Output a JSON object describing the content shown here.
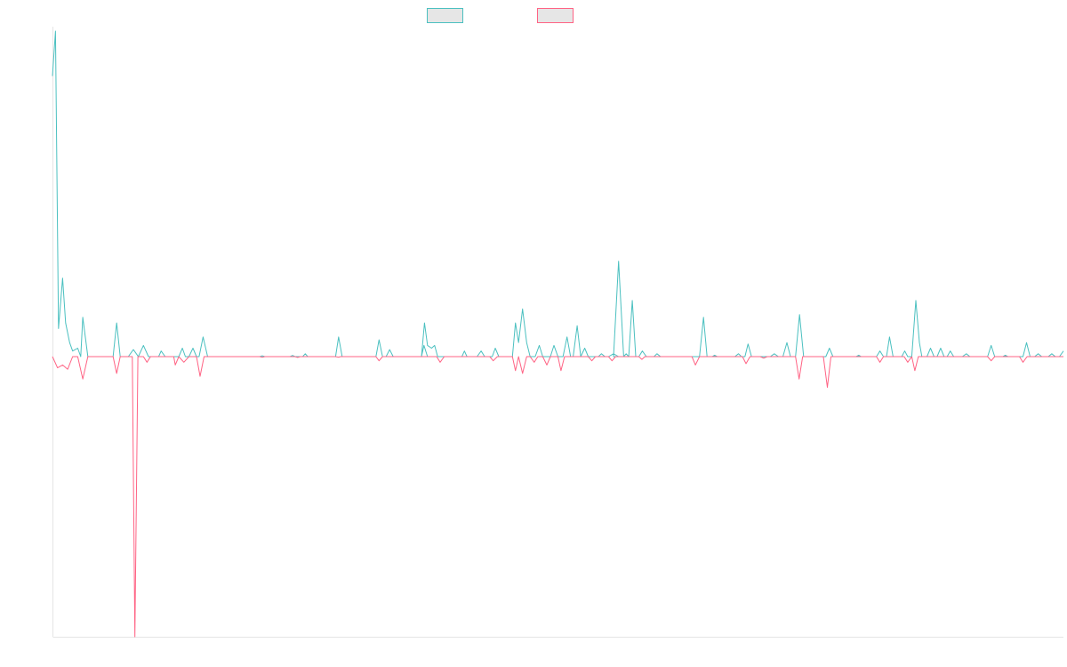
{
  "chart_data": {
    "type": "line",
    "title": "",
    "xlabel": "",
    "ylabel": "",
    "legend_position": "top",
    "grid": false,
    "x_range": [
      0,
      200
    ],
    "ylim": [
      -1.0,
      1.16
    ],
    "series": [
      {
        "name": "",
        "color": "#4bc0c0",
        "fill": "#e6e6e6",
        "points": [
          [
            0,
            1.0
          ],
          [
            0.6,
            1.16
          ],
          [
            1.2,
            0.1
          ],
          [
            2,
            0.28
          ],
          [
            2.6,
            0.12
          ],
          [
            3.4,
            0.05
          ],
          [
            4,
            0.02
          ],
          [
            5,
            0.03
          ],
          [
            5.6,
            0.0
          ],
          [
            6,
            0.14
          ],
          [
            7,
            0.0
          ],
          [
            12,
            0.0
          ],
          [
            12.7,
            0.12
          ],
          [
            13.4,
            0.0
          ],
          [
            15,
            0.0
          ],
          [
            16,
            0.025
          ],
          [
            17,
            0.0
          ],
          [
            18,
            0.04
          ],
          [
            19,
            0.0
          ],
          [
            21,
            0.0
          ],
          [
            21.5,
            0.02
          ],
          [
            22.3,
            0.0
          ],
          [
            25,
            0.0
          ],
          [
            25.7,
            0.03
          ],
          [
            26.3,
            0.0
          ],
          [
            27,
            0.0
          ],
          [
            27.8,
            0.03
          ],
          [
            28.5,
            0.0
          ],
          [
            29,
            0.0
          ],
          [
            29.8,
            0.07
          ],
          [
            30.7,
            0.0
          ],
          [
            41,
            0.0
          ],
          [
            41.5,
            0.003
          ],
          [
            42,
            0.0
          ],
          [
            47,
            0.0
          ],
          [
            47.5,
            0.004
          ],
          [
            48,
            0.0
          ],
          [
            49.5,
            0.0
          ],
          [
            50,
            0.01
          ],
          [
            50.5,
            0.0
          ],
          [
            56,
            0.0
          ],
          [
            56.6,
            0.07
          ],
          [
            57.3,
            0.0
          ],
          [
            64,
            0.0
          ],
          [
            64.6,
            0.06
          ],
          [
            65.3,
            0.0
          ],
          [
            66,
            0.0
          ],
          [
            66.7,
            0.025
          ],
          [
            67.4,
            0.0
          ],
          [
            73,
            0.0
          ],
          [
            73.5,
            0.04
          ],
          [
            74.2,
            0.0
          ],
          [
            75,
            0.0
          ],
          [
            73,
            0.0
          ],
          [
            73.6,
            0.12
          ],
          [
            74.2,
            0.04
          ],
          [
            75,
            0.03
          ],
          [
            75.6,
            0.04
          ],
          [
            76.2,
            0.0
          ],
          [
            81,
            0.0
          ],
          [
            81.5,
            0.02
          ],
          [
            82,
            0.0
          ],
          [
            84,
            0.0
          ],
          [
            84.8,
            0.02
          ],
          [
            85.5,
            0.0
          ],
          [
            87,
            0.0
          ],
          [
            87.6,
            0.03
          ],
          [
            88.3,
            0.0
          ],
          [
            91,
            0.0
          ],
          [
            91.6,
            0.12
          ],
          [
            92.2,
            0.05
          ],
          [
            93,
            0.17
          ],
          [
            93.8,
            0.05
          ],
          [
            94.5,
            0.0
          ],
          [
            95.5,
            0.0
          ],
          [
            96.3,
            0.04
          ],
          [
            97,
            0.0
          ],
          [
            98.5,
            0.0
          ],
          [
            99.2,
            0.04
          ],
          [
            100,
            0.0
          ],
          [
            101,
            0.0
          ],
          [
            101.8,
            0.07
          ],
          [
            102.5,
            0.0
          ],
          [
            103,
            0.0
          ],
          [
            103.8,
            0.11
          ],
          [
            104.5,
            0.0
          ],
          [
            105.3,
            0.03
          ],
          [
            106,
            0.0
          ],
          [
            108,
            0.0
          ],
          [
            108.6,
            0.01
          ],
          [
            109.3,
            0.0
          ],
          [
            110,
            0.0
          ],
          [
            111,
            0.01
          ],
          [
            112,
            0.0
          ],
          [
            113,
            0.0
          ],
          [
            113.5,
            0.01
          ],
          [
            114,
            0.0
          ],
          [
            111,
            0.0
          ],
          [
            112,
            0.34
          ],
          [
            113,
            0.0
          ],
          [
            114,
            0.0
          ],
          [
            114.7,
            0.2
          ],
          [
            115.4,
            0.0
          ],
          [
            116,
            0.0
          ],
          [
            116.7,
            0.02
          ],
          [
            117.5,
            0.0
          ],
          [
            119,
            0.0
          ],
          [
            119.6,
            0.01
          ],
          [
            120.3,
            0.0
          ],
          [
            128,
            0.0
          ],
          [
            128.8,
            0.14
          ],
          [
            129.5,
            0.0
          ],
          [
            130.5,
            0.0
          ],
          [
            131,
            0.005
          ],
          [
            131.5,
            0.0
          ],
          [
            135,
            0.0
          ],
          [
            135.7,
            0.01
          ],
          [
            136.3,
            0.0
          ],
          [
            137,
            0.0
          ],
          [
            137.6,
            0.045
          ],
          [
            138.3,
            0.0
          ],
          [
            142,
            0.0
          ],
          [
            142.8,
            0.01
          ],
          [
            143.6,
            0.0
          ],
          [
            144.5,
            0.0
          ],
          [
            145.3,
            0.05
          ],
          [
            146,
            0.0
          ],
          [
            147,
            0.0
          ],
          [
            147.8,
            0.15
          ],
          [
            148.6,
            0.0
          ],
          [
            153,
            0.0
          ],
          [
            153.7,
            0.03
          ],
          [
            154.4,
            0.0
          ],
          [
            159,
            0.0
          ],
          [
            159.5,
            0.005
          ],
          [
            160,
            0.0
          ],
          [
            163,
            0.0
          ],
          [
            163.7,
            0.02
          ],
          [
            164.4,
            0.0
          ],
          [
            165,
            0.0
          ],
          [
            165.6,
            0.07
          ],
          [
            166.3,
            0.0
          ],
          [
            168,
            0.0
          ],
          [
            168.6,
            0.02
          ],
          [
            169.2,
            0.0
          ],
          [
            170,
            0.0
          ],
          [
            170.8,
            0.2
          ],
          [
            171.5,
            0.05
          ],
          [
            172,
            0.0
          ],
          [
            173,
            0.0
          ],
          [
            173.7,
            0.03
          ],
          [
            174.4,
            0.0
          ],
          [
            175,
            0.0
          ],
          [
            175.7,
            0.03
          ],
          [
            176.4,
            0.0
          ],
          [
            177,
            0.0
          ],
          [
            177.6,
            0.02
          ],
          [
            178.3,
            0.0
          ],
          [
            180,
            0.0
          ],
          [
            180.8,
            0.01
          ],
          [
            181.5,
            0.0
          ],
          [
            185,
            0.0
          ],
          [
            185.7,
            0.04
          ],
          [
            186.4,
            0.0
          ],
          [
            188,
            0.0
          ],
          [
            188.5,
            0.005
          ],
          [
            189,
            0.0
          ],
          [
            192,
            0.0
          ],
          [
            192.7,
            0.05
          ],
          [
            193.4,
            0.0
          ],
          [
            194.3,
            0.0
          ],
          [
            195,
            0.01
          ],
          [
            195.7,
            0.0
          ],
          [
            197,
            0.0
          ],
          [
            197.7,
            0.01
          ],
          [
            198.4,
            0.0
          ],
          [
            199.2,
            0.0
          ],
          [
            200,
            0.02
          ]
        ]
      },
      {
        "name": "",
        "color": "#ff6384",
        "fill": "#e6e6e6",
        "points": [
          [
            0,
            0.0
          ],
          [
            1,
            -0.04
          ],
          [
            2,
            -0.03
          ],
          [
            3,
            -0.045
          ],
          [
            4,
            0.0
          ],
          [
            5,
            0.0
          ],
          [
            6,
            -0.08
          ],
          [
            7,
            0.0
          ],
          [
            12,
            0.0
          ],
          [
            12.7,
            -0.06
          ],
          [
            13.4,
            0.0
          ],
          [
            15,
            0.0
          ],
          [
            15.8,
            0.0
          ],
          [
            16.3,
            -1.0
          ],
          [
            16.9,
            0.0
          ],
          [
            18,
            0.0
          ],
          [
            18.7,
            -0.02
          ],
          [
            19.4,
            0.0
          ],
          [
            24,
            0.0
          ],
          [
            24.3,
            -0.03
          ],
          [
            25,
            0.0
          ],
          [
            26,
            -0.02
          ],
          [
            27,
            0.0
          ],
          [
            28.5,
            0.0
          ],
          [
            29.2,
            -0.07
          ],
          [
            30,
            0.0
          ],
          [
            41,
            0.0
          ],
          [
            41.5,
            -0.002
          ],
          [
            42,
            0.0
          ],
          [
            48,
            0.0
          ],
          [
            48.5,
            -0.003
          ],
          [
            49,
            0.0
          ],
          [
            56,
            0.0
          ],
          [
            56.6,
            -0.002
          ],
          [
            57,
            0.0
          ],
          [
            64,
            0.0
          ],
          [
            64.6,
            -0.015
          ],
          [
            65.3,
            0.0
          ],
          [
            76,
            0.0
          ],
          [
            76.7,
            -0.02
          ],
          [
            77.5,
            0.0
          ],
          [
            86.5,
            0.0
          ],
          [
            87.2,
            -0.015
          ],
          [
            88,
            0.0
          ],
          [
            91,
            0.0
          ],
          [
            91.6,
            -0.05
          ],
          [
            92.2,
            0.0
          ],
          [
            93,
            -0.06
          ],
          [
            93.8,
            0.0
          ],
          [
            94.5,
            0.0
          ],
          [
            95.3,
            -0.02
          ],
          [
            96,
            0.0
          ],
          [
            97,
            0.0
          ],
          [
            97.8,
            -0.03
          ],
          [
            98.5,
            0.0
          ],
          [
            100,
            0.0
          ],
          [
            100.6,
            -0.05
          ],
          [
            101.3,
            0.0
          ],
          [
            106,
            0.0
          ],
          [
            106.7,
            -0.015
          ],
          [
            107.4,
            0.0
          ],
          [
            110,
            0.0
          ],
          [
            110.7,
            -0.015
          ],
          [
            111.4,
            0.0
          ],
          [
            112,
            0.0
          ],
          [
            113,
            0.0
          ],
          [
            116,
            0.0
          ],
          [
            116.6,
            -0.01
          ],
          [
            117.2,
            0.0
          ],
          [
            120,
            0.0
          ],
          [
            126.5,
            0.0
          ],
          [
            127.2,
            -0.03
          ],
          [
            128,
            0.0
          ],
          [
            136.5,
            0.0
          ],
          [
            137.2,
            -0.025
          ],
          [
            138,
            0.0
          ],
          [
            140,
            0.0
          ],
          [
            140.7,
            -0.005
          ],
          [
            141.4,
            0.0
          ],
          [
            147,
            0.0
          ],
          [
            147.7,
            -0.08
          ],
          [
            148.4,
            0.0
          ],
          [
            152.5,
            0.0
          ],
          [
            153.3,
            -0.11
          ],
          [
            154,
            0.0
          ],
          [
            163,
            0.0
          ],
          [
            163.7,
            -0.02
          ],
          [
            164.4,
            0.0
          ],
          [
            168.5,
            0.0
          ],
          [
            169.2,
            -0.02
          ],
          [
            170,
            0.0
          ],
          [
            170.6,
            -0.05
          ],
          [
            171.3,
            0.0
          ],
          [
            185,
            0.0
          ],
          [
            185.7,
            -0.015
          ],
          [
            186.4,
            0.0
          ],
          [
            191.3,
            0.0
          ],
          [
            192,
            -0.02
          ],
          [
            192.8,
            0.0
          ],
          [
            200,
            0.0
          ]
        ]
      }
    ]
  }
}
